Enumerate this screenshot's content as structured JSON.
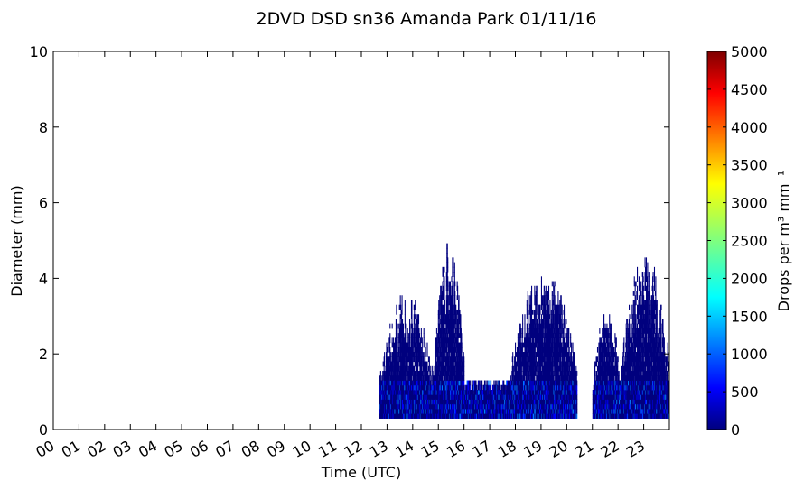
{
  "chart_data": {
    "type": "heatmap",
    "title": "2DVD DSD sn36 Amanda Park 01/11/16",
    "xlabel": "Time (UTC)",
    "ylabel": "Diameter (mm)",
    "xlim": [
      0,
      24
    ],
    "ylim": [
      0,
      10
    ],
    "x_tick_labels": [
      "00",
      "01",
      "02",
      "03",
      "04",
      "05",
      "06",
      "07",
      "08",
      "09",
      "10",
      "11",
      "12",
      "13",
      "14",
      "15",
      "16",
      "17",
      "18",
      "19",
      "20",
      "21",
      "22",
      "23"
    ],
    "y_ticks": [
      0,
      2,
      4,
      6,
      8,
      10
    ],
    "grid": false,
    "colorbar": {
      "label": "Drops per m³ mm⁻¹",
      "range": [
        0,
        5000
      ],
      "ticks": [
        0,
        500,
        1000,
        1500,
        2000,
        2500,
        3000,
        3500,
        4000,
        4500,
        5000
      ],
      "colormap": "jet",
      "colors": [
        "#00007f",
        "#0000ff",
        "#007fff",
        "#00ffff",
        "#7fff7f",
        "#ffff00",
        "#ff7f00",
        "#ff0000",
        "#7f0000"
      ]
    },
    "rain_periods": [
      {
        "start_hour": 12.7,
        "end_hour": 14.8,
        "max_diameter_mm": 3.7
      },
      {
        "start_hour": 14.8,
        "end_hour": 16.0,
        "max_diameter_mm": 5.0
      },
      {
        "start_hour": 16.0,
        "end_hour": 17.8,
        "max_diameter_mm": 1.3
      },
      {
        "start_hour": 17.8,
        "end_hour": 20.4,
        "max_diameter_mm": 4.4
      },
      {
        "start_hour": 21.0,
        "end_hour": 22.1,
        "max_diameter_mm": 3.3
      },
      {
        "start_hour": 22.1,
        "end_hour": 24.0,
        "max_diameter_mm": 4.7
      }
    ],
    "min_diameter_mm": 0.3,
    "peak_concentration_per_m3_mm": 1500
  }
}
